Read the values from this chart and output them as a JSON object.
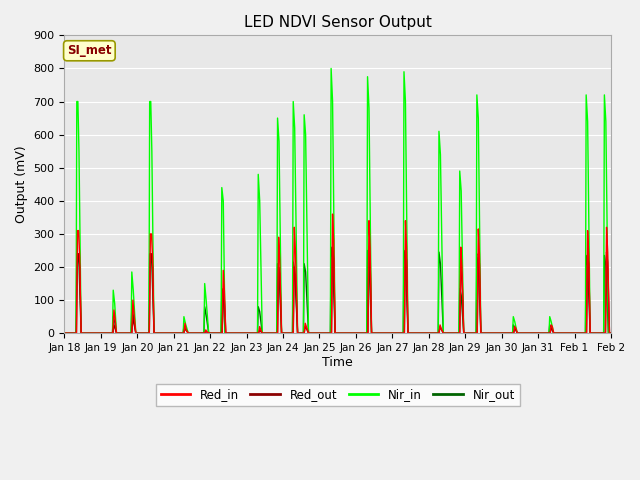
{
  "title": "LED NDVI Sensor Output",
  "xlabel": "Time",
  "ylabel": "Output (mV)",
  "ylim": [
    0,
    900
  ],
  "xlim": [
    0,
    15
  ],
  "fig_facecolor": "#f0f0f0",
  "ax_facecolor": "#e8e8e8",
  "annotation_text": "SI_met",
  "annotation_bg": "#ffffcc",
  "annotation_border": "#999900",
  "annotation_text_color": "#880000",
  "xtick_labels": [
    "Jan 18",
    "Jan 19",
    "Jan 20",
    "Jan 21",
    "Jan 22",
    "Jan 23",
    "Jan 24",
    "Jan 25",
    "Jan 26",
    "Jan 27",
    "Jan 28",
    "Jan 29",
    "Jan 30",
    "Jan 31",
    "Feb 1",
    "Feb 2"
  ],
  "ytick_vals": [
    0,
    100,
    200,
    300,
    400,
    500,
    600,
    700,
    800,
    900
  ],
  "colors": {
    "Red_in": "#ff0000",
    "Red_out": "#8b0000",
    "Nir_in": "#00ff00",
    "Nir_out": "#006400"
  },
  "series": {
    "Red_in": [
      [
        0.0,
        0
      ],
      [
        0.33,
        0
      ],
      [
        0.36,
        310
      ],
      [
        0.39,
        310
      ],
      [
        0.42,
        230
      ],
      [
        0.46,
        0
      ],
      [
        1.33,
        0
      ],
      [
        1.36,
        70
      ],
      [
        1.39,
        45
      ],
      [
        1.43,
        0
      ],
      [
        1.85,
        0
      ],
      [
        1.88,
        100
      ],
      [
        1.91,
        60
      ],
      [
        1.96,
        0
      ],
      [
        2.33,
        0
      ],
      [
        2.36,
        300
      ],
      [
        2.39,
        300
      ],
      [
        2.42,
        230
      ],
      [
        2.46,
        0
      ],
      [
        3.28,
        0
      ],
      [
        3.31,
        30
      ],
      [
        3.34,
        10
      ],
      [
        3.4,
        0
      ],
      [
        3.85,
        0
      ],
      [
        3.88,
        10
      ],
      [
        3.91,
        5
      ],
      [
        3.96,
        0
      ],
      [
        4.33,
        0
      ],
      [
        4.36,
        190
      ],
      [
        4.39,
        130
      ],
      [
        4.43,
        0
      ],
      [
        5.33,
        0
      ],
      [
        5.36,
        20
      ],
      [
        5.39,
        10
      ],
      [
        5.43,
        0
      ],
      [
        5.85,
        0
      ],
      [
        5.88,
        290
      ],
      [
        5.91,
        220
      ],
      [
        5.96,
        0
      ],
      [
        6.28,
        0
      ],
      [
        6.31,
        320
      ],
      [
        6.34,
        250
      ],
      [
        6.4,
        0
      ],
      [
        6.58,
        0
      ],
      [
        6.61,
        30
      ],
      [
        6.64,
        20
      ],
      [
        6.7,
        0
      ],
      [
        7.33,
        0
      ],
      [
        7.36,
        360
      ],
      [
        7.39,
        280
      ],
      [
        7.43,
        0
      ],
      [
        8.33,
        0
      ],
      [
        8.36,
        340
      ],
      [
        8.39,
        260
      ],
      [
        8.43,
        0
      ],
      [
        9.33,
        0
      ],
      [
        9.36,
        340
      ],
      [
        9.39,
        260
      ],
      [
        9.43,
        0
      ],
      [
        10.28,
        0
      ],
      [
        10.31,
        25
      ],
      [
        10.34,
        15
      ],
      [
        10.4,
        0
      ],
      [
        10.85,
        0
      ],
      [
        10.88,
        260
      ],
      [
        10.91,
        200
      ],
      [
        10.96,
        0
      ],
      [
        11.33,
        0
      ],
      [
        11.36,
        315
      ],
      [
        11.39,
        240
      ],
      [
        11.43,
        0
      ],
      [
        12.33,
        0
      ],
      [
        12.36,
        20
      ],
      [
        12.39,
        15
      ],
      [
        12.43,
        0
      ],
      [
        13.33,
        0
      ],
      [
        13.36,
        25
      ],
      [
        13.39,
        20
      ],
      [
        13.43,
        0
      ],
      [
        14.33,
        0
      ],
      [
        14.36,
        310
      ],
      [
        14.39,
        235
      ],
      [
        14.43,
        0
      ],
      [
        14.85,
        0
      ],
      [
        14.88,
        320
      ],
      [
        14.91,
        245
      ],
      [
        14.96,
        0
      ],
      [
        15.0,
        0
      ]
    ],
    "Red_out": [
      [
        0.0,
        0
      ],
      [
        0.33,
        0
      ],
      [
        0.36,
        240
      ],
      [
        0.39,
        240
      ],
      [
        0.42,
        200
      ],
      [
        0.46,
        0
      ],
      [
        1.33,
        0
      ],
      [
        1.36,
        25
      ],
      [
        1.39,
        15
      ],
      [
        1.43,
        0
      ],
      [
        1.85,
        0
      ],
      [
        1.88,
        45
      ],
      [
        1.91,
        30
      ],
      [
        1.96,
        0
      ],
      [
        2.33,
        0
      ],
      [
        2.36,
        240
      ],
      [
        2.39,
        240
      ],
      [
        2.42,
        200
      ],
      [
        2.46,
        0
      ],
      [
        3.28,
        0
      ],
      [
        3.31,
        20
      ],
      [
        3.34,
        10
      ],
      [
        3.4,
        0
      ],
      [
        3.85,
        0
      ],
      [
        3.88,
        5
      ],
      [
        3.91,
        3
      ],
      [
        3.96,
        0
      ],
      [
        4.33,
        0
      ],
      [
        4.36,
        130
      ],
      [
        4.39,
        100
      ],
      [
        4.43,
        0
      ],
      [
        5.33,
        0
      ],
      [
        5.36,
        10
      ],
      [
        5.39,
        5
      ],
      [
        5.43,
        0
      ],
      [
        5.85,
        0
      ],
      [
        5.88,
        200
      ],
      [
        5.91,
        180
      ],
      [
        5.96,
        0
      ],
      [
        6.28,
        0
      ],
      [
        6.31,
        200
      ],
      [
        6.34,
        175
      ],
      [
        6.4,
        0
      ],
      [
        6.58,
        0
      ],
      [
        6.61,
        20
      ],
      [
        6.64,
        15
      ],
      [
        6.7,
        0
      ],
      [
        7.33,
        0
      ],
      [
        7.36,
        260
      ],
      [
        7.39,
        225
      ],
      [
        7.43,
        0
      ],
      [
        8.33,
        0
      ],
      [
        8.36,
        250
      ],
      [
        8.39,
        220
      ],
      [
        8.43,
        0
      ],
      [
        9.33,
        0
      ],
      [
        9.36,
        250
      ],
      [
        9.39,
        220
      ],
      [
        9.43,
        0
      ],
      [
        10.28,
        0
      ],
      [
        10.31,
        20
      ],
      [
        10.34,
        12
      ],
      [
        10.4,
        0
      ],
      [
        10.85,
        0
      ],
      [
        10.88,
        200
      ],
      [
        10.91,
        175
      ],
      [
        10.96,
        0
      ],
      [
        11.33,
        0
      ],
      [
        11.36,
        240
      ],
      [
        11.39,
        210
      ],
      [
        11.43,
        0
      ],
      [
        12.33,
        0
      ],
      [
        12.36,
        15
      ],
      [
        12.39,
        10
      ],
      [
        12.43,
        0
      ],
      [
        13.33,
        0
      ],
      [
        13.36,
        15
      ],
      [
        13.39,
        10
      ],
      [
        13.43,
        0
      ],
      [
        14.33,
        0
      ],
      [
        14.36,
        235
      ],
      [
        14.39,
        210
      ],
      [
        14.43,
        0
      ],
      [
        14.85,
        0
      ],
      [
        14.88,
        245
      ],
      [
        14.91,
        215
      ],
      [
        14.96,
        0
      ],
      [
        15.0,
        0
      ]
    ],
    "Nir_in": [
      [
        0.0,
        0
      ],
      [
        0.32,
        0
      ],
      [
        0.34,
        700
      ],
      [
        0.37,
        700
      ],
      [
        0.4,
        550
      ],
      [
        0.46,
        0
      ],
      [
        1.32,
        0
      ],
      [
        1.34,
        130
      ],
      [
        1.38,
        90
      ],
      [
        1.43,
        0
      ],
      [
        1.83,
        0
      ],
      [
        1.85,
        185
      ],
      [
        1.89,
        130
      ],
      [
        1.96,
        0
      ],
      [
        2.32,
        0
      ],
      [
        2.34,
        700
      ],
      [
        2.37,
        700
      ],
      [
        2.4,
        550
      ],
      [
        2.46,
        0
      ],
      [
        3.26,
        0
      ],
      [
        3.28,
        50
      ],
      [
        3.32,
        30
      ],
      [
        3.4,
        0
      ],
      [
        3.83,
        0
      ],
      [
        3.85,
        150
      ],
      [
        3.89,
        100
      ],
      [
        3.96,
        0
      ],
      [
        4.3,
        0
      ],
      [
        4.32,
        440
      ],
      [
        4.36,
        400
      ],
      [
        4.41,
        0
      ],
      [
        5.3,
        0
      ],
      [
        5.32,
        480
      ],
      [
        5.36,
        400
      ],
      [
        5.43,
        0
      ],
      [
        5.83,
        0
      ],
      [
        5.85,
        650
      ],
      [
        5.89,
        580
      ],
      [
        5.96,
        0
      ],
      [
        6.26,
        0
      ],
      [
        6.28,
        700
      ],
      [
        6.32,
        620
      ],
      [
        6.4,
        0
      ],
      [
        6.56,
        0
      ],
      [
        6.58,
        660
      ],
      [
        6.62,
        600
      ],
      [
        6.7,
        0
      ],
      [
        7.3,
        0
      ],
      [
        7.32,
        800
      ],
      [
        7.36,
        700
      ],
      [
        7.43,
        0
      ],
      [
        8.3,
        0
      ],
      [
        8.32,
        775
      ],
      [
        8.36,
        680
      ],
      [
        8.43,
        0
      ],
      [
        9.3,
        0
      ],
      [
        9.32,
        790
      ],
      [
        9.36,
        700
      ],
      [
        9.43,
        0
      ],
      [
        10.26,
        0
      ],
      [
        10.28,
        610
      ],
      [
        10.32,
        540
      ],
      [
        10.4,
        0
      ],
      [
        10.83,
        0
      ],
      [
        10.85,
        490
      ],
      [
        10.89,
        430
      ],
      [
        10.96,
        0
      ],
      [
        11.3,
        0
      ],
      [
        11.32,
        720
      ],
      [
        11.36,
        650
      ],
      [
        11.43,
        0
      ],
      [
        12.3,
        0
      ],
      [
        12.32,
        50
      ],
      [
        12.36,
        35
      ],
      [
        12.43,
        0
      ],
      [
        13.3,
        0
      ],
      [
        13.32,
        50
      ],
      [
        13.36,
        35
      ],
      [
        13.43,
        0
      ],
      [
        14.3,
        0
      ],
      [
        14.32,
        720
      ],
      [
        14.36,
        640
      ],
      [
        14.43,
        0
      ],
      [
        14.8,
        0
      ],
      [
        14.82,
        720
      ],
      [
        14.86,
        640
      ],
      [
        14.93,
        0
      ],
      [
        15.0,
        0
      ]
    ],
    "Nir_out": [
      [
        0.0,
        0
      ],
      [
        0.32,
        0
      ],
      [
        0.34,
        240
      ],
      [
        0.37,
        240
      ],
      [
        0.4,
        210
      ],
      [
        0.46,
        0
      ],
      [
        1.32,
        0
      ],
      [
        1.34,
        50
      ],
      [
        1.38,
        35
      ],
      [
        1.43,
        0
      ],
      [
        1.83,
        0
      ],
      [
        1.85,
        75
      ],
      [
        1.89,
        55
      ],
      [
        1.96,
        0
      ],
      [
        2.32,
        0
      ],
      [
        2.34,
        240
      ],
      [
        2.37,
        240
      ],
      [
        2.4,
        210
      ],
      [
        2.46,
        0
      ],
      [
        3.26,
        0
      ],
      [
        3.28,
        20
      ],
      [
        3.32,
        12
      ],
      [
        3.4,
        0
      ],
      [
        3.83,
        0
      ],
      [
        3.85,
        80
      ],
      [
        3.89,
        55
      ],
      [
        3.96,
        0
      ],
      [
        4.3,
        0
      ],
      [
        4.32,
        135
      ],
      [
        4.36,
        120
      ],
      [
        4.41,
        0
      ],
      [
        5.3,
        0
      ],
      [
        5.32,
        80
      ],
      [
        5.36,
        65
      ],
      [
        5.43,
        0
      ],
      [
        5.83,
        0
      ],
      [
        5.85,
        210
      ],
      [
        5.89,
        185
      ],
      [
        5.96,
        0
      ],
      [
        6.26,
        0
      ],
      [
        6.28,
        215
      ],
      [
        6.32,
        190
      ],
      [
        6.4,
        0
      ],
      [
        6.56,
        0
      ],
      [
        6.58,
        210
      ],
      [
        6.62,
        185
      ],
      [
        6.7,
        0
      ],
      [
        7.3,
        0
      ],
      [
        7.32,
        260
      ],
      [
        7.36,
        230
      ],
      [
        7.43,
        0
      ],
      [
        8.3,
        0
      ],
      [
        8.32,
        250
      ],
      [
        8.36,
        220
      ],
      [
        8.43,
        0
      ],
      [
        9.3,
        0
      ],
      [
        9.32,
        250
      ],
      [
        9.36,
        225
      ],
      [
        9.43,
        0
      ],
      [
        10.26,
        0
      ],
      [
        10.28,
        245
      ],
      [
        10.32,
        210
      ],
      [
        10.4,
        0
      ],
      [
        10.83,
        0
      ],
      [
        10.85,
        135
      ],
      [
        10.89,
        115
      ],
      [
        10.96,
        0
      ],
      [
        11.3,
        0
      ],
      [
        11.32,
        230
      ],
      [
        11.36,
        200
      ],
      [
        11.43,
        0
      ],
      [
        12.3,
        0
      ],
      [
        12.32,
        25
      ],
      [
        12.36,
        18
      ],
      [
        12.43,
        0
      ],
      [
        13.3,
        0
      ],
      [
        13.32,
        25
      ],
      [
        13.36,
        18
      ],
      [
        13.43,
        0
      ],
      [
        14.3,
        0
      ],
      [
        14.32,
        235
      ],
      [
        14.36,
        205
      ],
      [
        14.43,
        0
      ],
      [
        14.8,
        0
      ],
      [
        14.82,
        235
      ],
      [
        14.86,
        205
      ],
      [
        14.93,
        0
      ],
      [
        15.0,
        0
      ]
    ]
  }
}
